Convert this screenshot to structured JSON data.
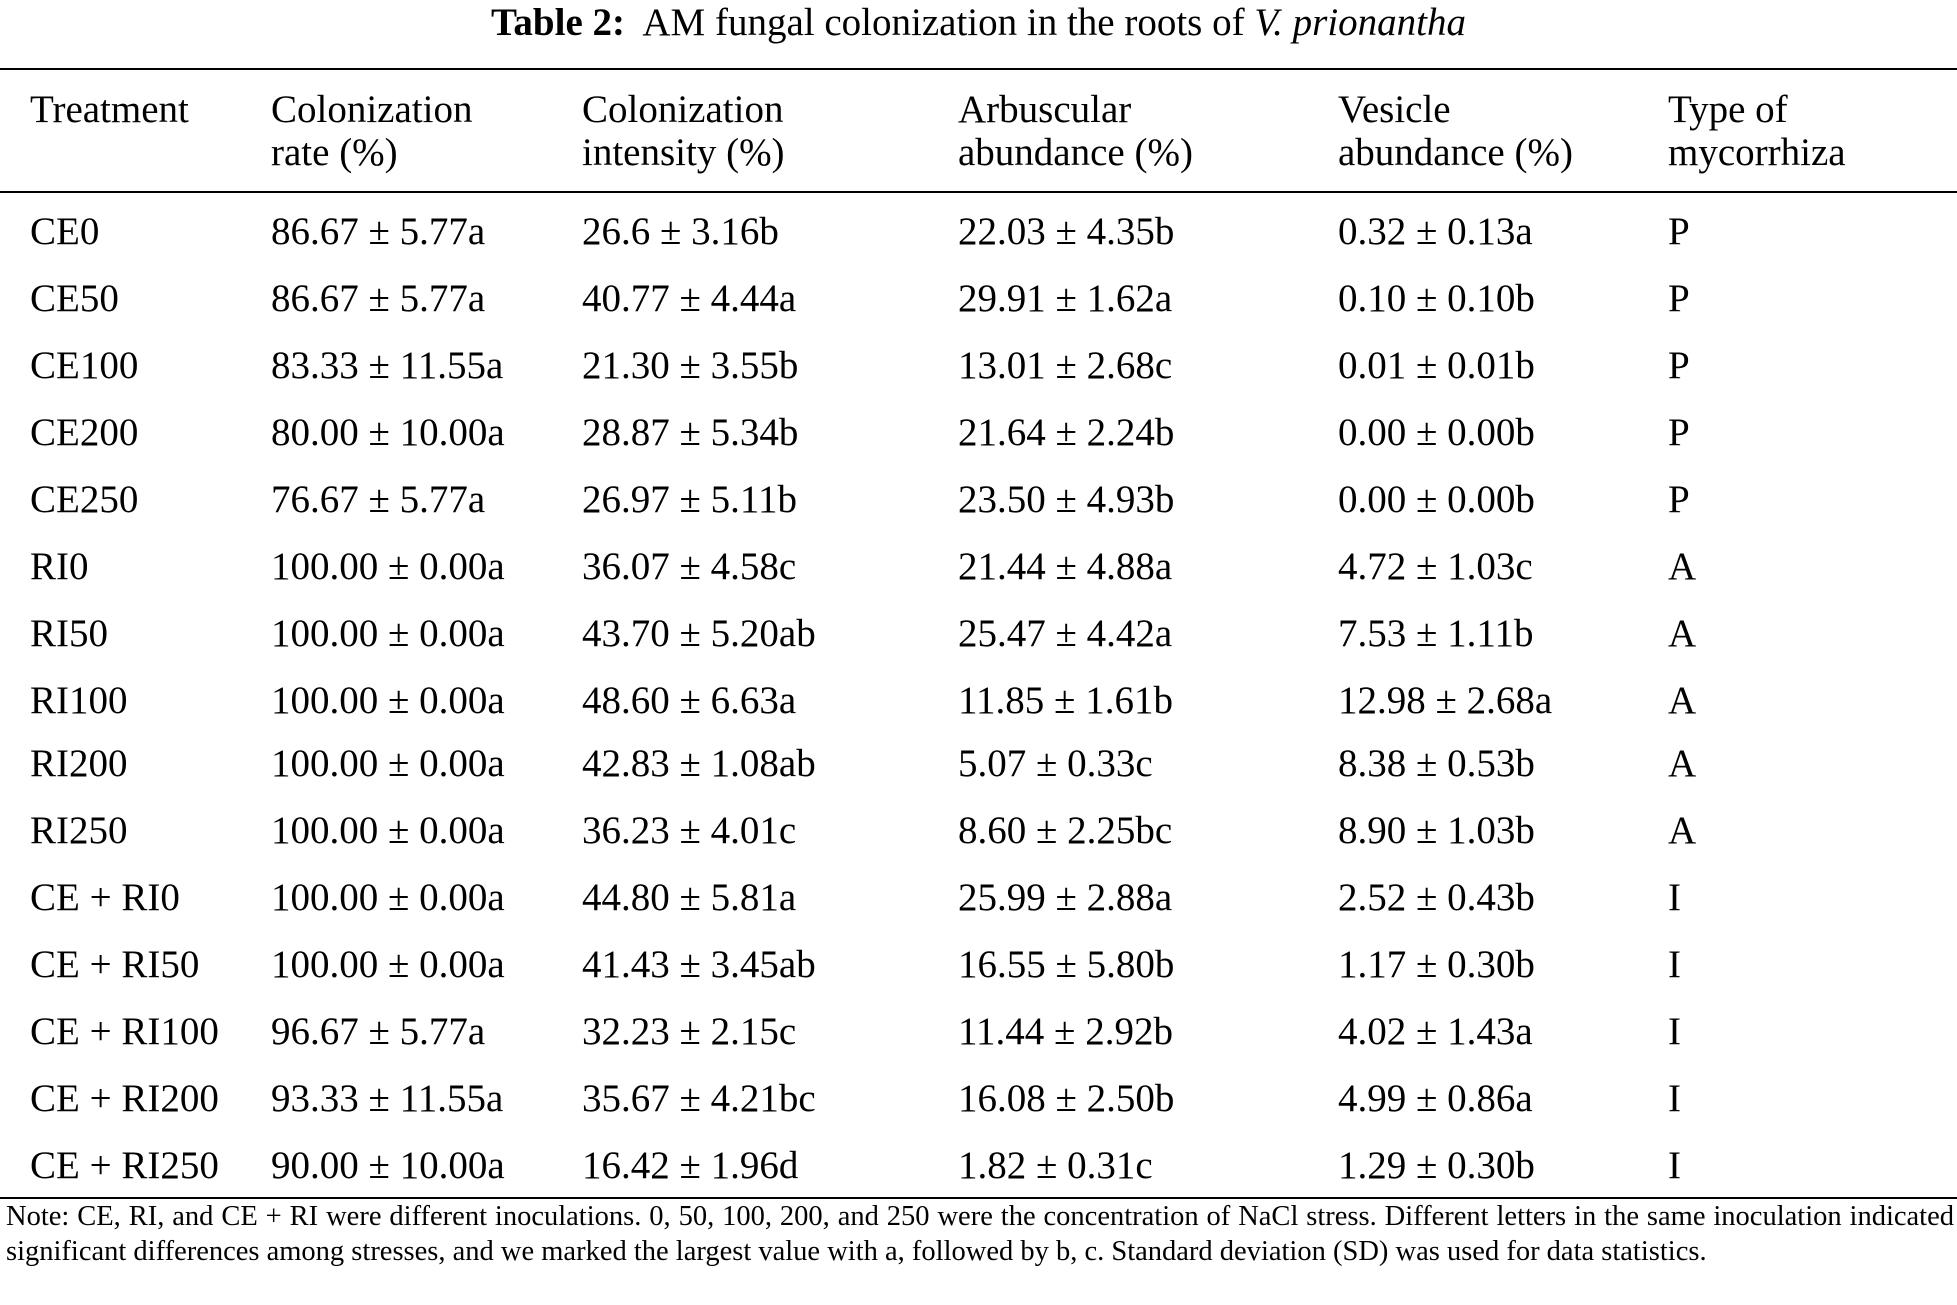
{
  "caption": {
    "label": "Table 2:",
    "text": "AM fungal colonization in the roots of",
    "species": "V. prionantha"
  },
  "headers": [
    {
      "line1": "Treatment",
      "line2": ""
    },
    {
      "line1": "Colonization",
      "line2": "rate (%)"
    },
    {
      "line1": "Colonization",
      "line2": "intensity (%)"
    },
    {
      "line1": "Arbuscular",
      "line2": "abundance (%)"
    },
    {
      "line1": "Vesicle",
      "line2": "abundance (%)"
    },
    {
      "line1": "Type of",
      "line2": "mycorrhiza"
    }
  ],
  "rows": [
    [
      "CE0",
      "86.67 ± 5.77a",
      "26.6 ± 3.16b",
      "22.03 ± 4.35b",
      "0.32 ± 0.13a",
      "P"
    ],
    [
      "CE50",
      "86.67 ± 5.77a",
      "40.77 ± 4.44a",
      "29.91 ± 1.62a",
      "0.10 ± 0.10b",
      "P"
    ],
    [
      "CE100",
      "83.33 ± 11.55a",
      "21.30 ± 3.55b",
      "13.01 ± 2.68c",
      "0.01 ± 0.01b",
      "P"
    ],
    [
      "CE200",
      "80.00 ± 10.00a",
      "28.87 ± 5.34b",
      "21.64 ± 2.24b",
      "0.00 ± 0.00b",
      "P"
    ],
    [
      "CE250",
      "76.67 ± 5.77a",
      "26.97 ± 5.11b",
      "23.50 ± 4.93b",
      "0.00 ± 0.00b",
      "P"
    ],
    [
      "RI0",
      "100.00 ± 0.00a",
      "36.07 ± 4.58c",
      "21.44 ± 4.88a",
      "4.72 ± 1.03c",
      "A"
    ],
    [
      "RI50",
      "100.00 ± 0.00a",
      "43.70 ± 5.20ab",
      "25.47 ± 4.42a",
      "7.53 ± 1.11b",
      "A"
    ],
    [
      "RI100",
      "100.00 ± 0.00a",
      "48.60 ± 6.63a",
      "11.85 ± 1.61b",
      "12.98 ± 2.68a",
      "A"
    ],
    [
      "RI200",
      "100.00 ± 0.00a",
      "42.83 ± 1.08ab",
      "5.07 ± 0.33c",
      "8.38 ± 0.53b",
      "A"
    ],
    [
      "RI250",
      "100.00 ± 0.00a",
      "36.23 ± 4.01c",
      "8.60 ± 2.25bc",
      "8.90 ± 1.03b",
      "A"
    ],
    [
      "CE + RI0",
      "100.00 ± 0.00a",
      "44.80 ± 5.81a",
      "25.99 ± 2.88a",
      "2.52 ± 0.43b",
      "I"
    ],
    [
      "CE + RI50",
      "100.00 ± 0.00a",
      "41.43 ± 3.45ab",
      "16.55 ± 5.80b",
      "1.17 ± 0.30b",
      "I"
    ],
    [
      "CE + RI100",
      "96.67 ± 5.77a",
      "32.23 ± 2.15c",
      "11.44 ± 2.92b",
      "4.02 ± 1.43a",
      "I"
    ],
    [
      "CE + RI200",
      "93.33 ± 11.55a",
      "35.67 ± 4.21bc",
      "16.08 ± 2.50b",
      "4.99 ± 0.86a",
      "I"
    ],
    [
      "CE + RI250",
      "90.00 ± 10.00a",
      "16.42 ± 1.96d",
      "1.82 ± 0.31c",
      "1.29 ± 0.30b",
      "I"
    ]
  ],
  "note": "Note: CE, RI, and CE + RI were different inoculations. 0, 50, 100, 200, and 250 were the concentration of NaCl stress. Different letters in the same inoculation indicated significant differences among stresses, and we marked the largest value with a, followed by b, c. Standard deviation (SD) was used for data statistics."
}
